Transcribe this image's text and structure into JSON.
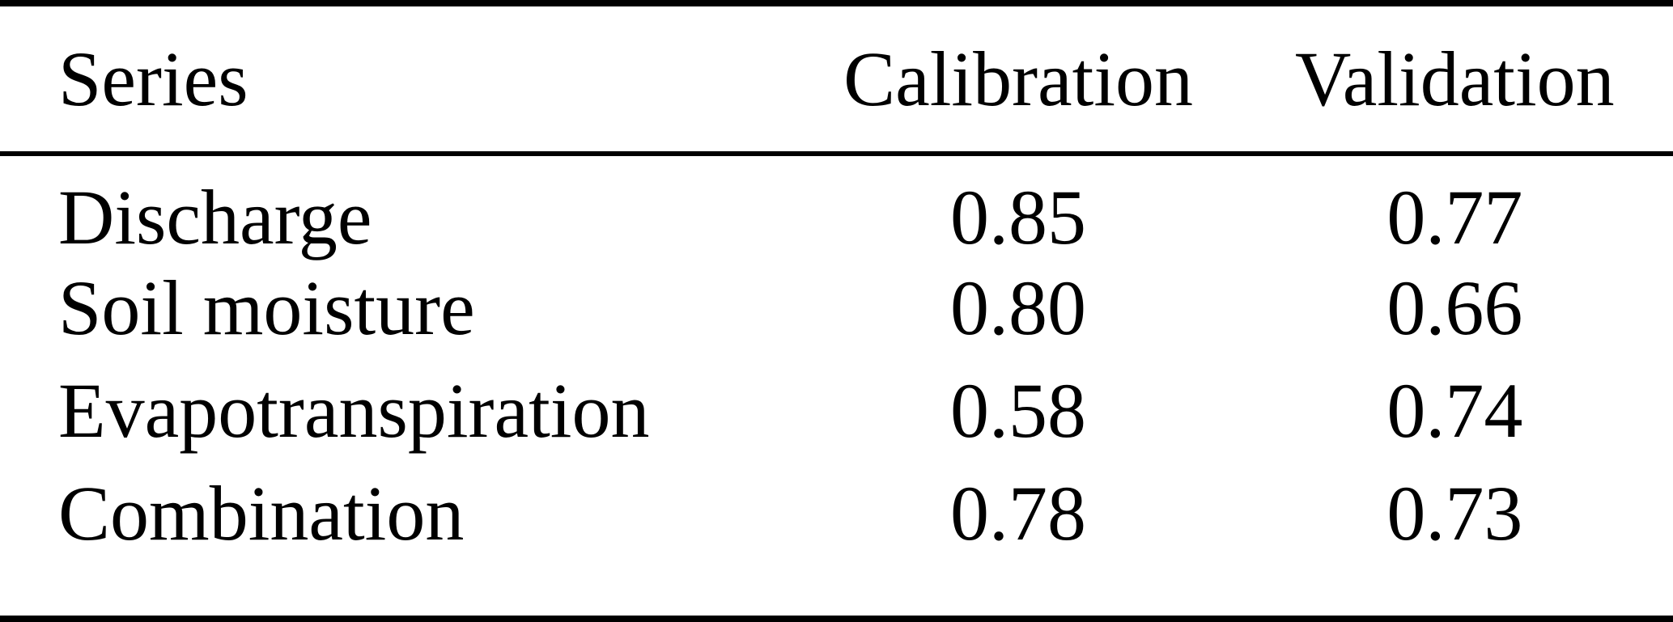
{
  "table": {
    "columns": {
      "series": "Series",
      "calibration": "Calibration",
      "validation": "Validation"
    },
    "rows": [
      {
        "label": "Discharge",
        "calibration": "0.85",
        "validation": "0.77"
      },
      {
        "label": "Soil moisture",
        "calibration": "0.80",
        "validation": "0.66"
      },
      {
        "label": "Evapotranspiration",
        "calibration": "0.58",
        "validation": "0.74"
      },
      {
        "label": "Combination",
        "calibration": "0.78",
        "validation": "0.73"
      }
    ]
  },
  "colors": {
    "text": "#000000",
    "background": "#ffffff",
    "rule": "#000000"
  },
  "chart_data": {
    "type": "table",
    "title": "",
    "categories": [
      "Discharge",
      "Soil moisture",
      "Evapotranspiration",
      "Combination"
    ],
    "series": [
      {
        "name": "Calibration",
        "values": [
          0.85,
          0.8,
          0.58,
          0.78
        ]
      },
      {
        "name": "Validation",
        "values": [
          0.77,
          0.66,
          0.74,
          0.73
        ]
      }
    ]
  }
}
